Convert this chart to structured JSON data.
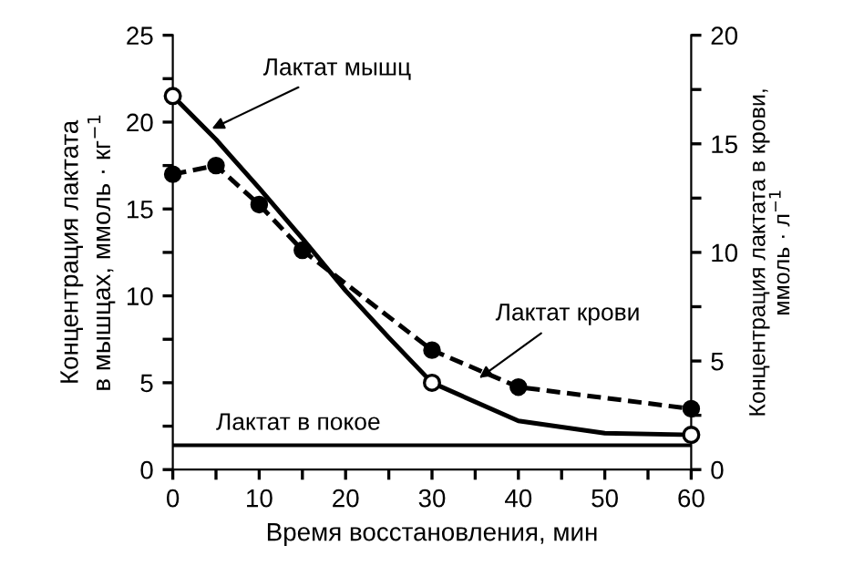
{
  "chart_data": {
    "type": "line",
    "xlabel": "Время восстановления, мин",
    "ylabel": "Концентрация лактата\nв мышцах, ммоль · кг$^{−1}$",
    "y2label": "Концентрация лактата в крови,\nммоль · л$^{−1}$",
    "xlim": [
      0,
      60
    ],
    "ylim": [
      0,
      25
    ],
    "y2lim": [
      0,
      20
    ],
    "xticks": [
      0,
      {
        "value": 5,
        "label": null
      },
      10,
      {
        "value": 15,
        "label": null
      },
      20,
      {
        "value": 25,
        "label": null
      },
      30,
      {
        "value": 35,
        "label": null
      },
      40,
      {
        "value": 45,
        "label": null
      },
      50,
      {
        "value": 55,
        "label": null
      },
      60
    ],
    "yticks": [
      0,
      {
        "value": 2.5,
        "label": null
      },
      5,
      {
        "value": 7.5,
        "label": null
      },
      10,
      {
        "value": 12.5,
        "label": null
      },
      15,
      {
        "value": 17.5,
        "label": null
      },
      20,
      {
        "value": 22.5,
        "label": null
      },
      25
    ],
    "y2ticks": [
      0,
      {
        "value": 2.5,
        "label": null
      },
      5,
      {
        "value": 7.5,
        "label": null
      },
      10,
      {
        "value": 12.5,
        "label": null
      },
      15,
      {
        "value": 17.5,
        "label": null
      },
      20
    ],
    "series": [
      {
        "color": "#000000",
        "marker": "none",
        "line_style": "solid",
        "x": [
          0,
          5,
          10,
          15,
          20,
          25,
          30,
          40,
          50,
          60
        ],
        "values": [
          21.5,
          19,
          16.2,
          13.3,
          10.3,
          7.6,
          5.0,
          2.8,
          2.1,
          2.0
        ]
      },
      {
        "type": "scatter",
        "color": "#000000",
        "marker": "circle",
        "x": [
          0,
          30,
          60
        ],
        "values": [
          21.5,
          5.0,
          2.0
        ]
      },
      {
        "axis": "y2",
        "color": "#000000",
        "marker": "circle",
        "line_style": "dashed",
        "x": [
          0,
          5,
          10,
          15,
          30,
          40,
          60
        ],
        "values": [
          13.6,
          14.0,
          12.2,
          10.1,
          5.5,
          3.8,
          2.8
        ]
      }
    ],
    "ref_lines": [
      {
        "axis": "y",
        "value": 1.4,
        "label": "Лактат в покое",
        "color": "#000000",
        "line_style": "solid"
      }
    ],
    "annotations": [
      {
        "text": "Лактат мышц",
        "x": 4,
        "y": 19.5
      },
      {
        "text": "Лактат крови",
        "x": 35,
        "y": 5.1
      }
    ],
    "grid": false,
    "legend": false
  }
}
